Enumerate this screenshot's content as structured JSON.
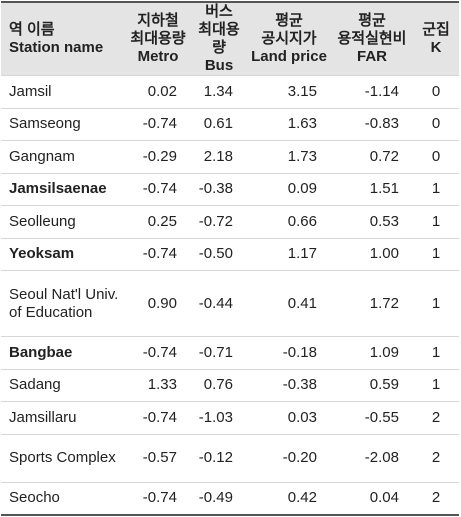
{
  "table": {
    "columns": [
      [
        "역 이름",
        "Station name"
      ],
      [
        "지하철",
        "최대용량",
        "Metro"
      ],
      [
        "버스",
        "최대용량",
        "Bus"
      ],
      [
        "평균",
        "공시지가",
        "Land price"
      ],
      [
        "평균",
        "용적실현비",
        "FAR"
      ],
      [
        "군집",
        "K"
      ]
    ],
    "rows": [
      {
        "name": "Jamsil",
        "bold": false,
        "values": [
          "0.02",
          "1.34",
          "3.15",
          "-1.14",
          "0"
        ]
      },
      {
        "name": "Samseong",
        "bold": false,
        "values": [
          "-0.74",
          "0.61",
          "1.63",
          "-0.83",
          "0"
        ]
      },
      {
        "name": "Gangnam",
        "bold": false,
        "values": [
          "-0.29",
          "2.18",
          "1.73",
          "0.72",
          "0"
        ]
      },
      {
        "name": "Jamsilsaenae",
        "bold": true,
        "values": [
          "-0.74",
          "-0.38",
          "0.09",
          "1.51",
          "1"
        ]
      },
      {
        "name": "Seolleung",
        "bold": false,
        "values": [
          "0.25",
          "-0.72",
          "0.66",
          "0.53",
          "1"
        ]
      },
      {
        "name": "Yeoksam",
        "bold": true,
        "values": [
          "-0.74",
          "-0.50",
          "1.17",
          "1.00",
          "1"
        ]
      },
      {
        "name": "Seoul Nat'l Univ. of Education",
        "bold": false,
        "values": [
          "0.90",
          "-0.44",
          "0.41",
          "1.72",
          "1"
        ]
      },
      {
        "name": "Bangbae",
        "bold": true,
        "values": [
          "-0.74",
          "-0.71",
          "-0.18",
          "1.09",
          "1"
        ]
      },
      {
        "name": "Sadang",
        "bold": false,
        "values": [
          "1.33",
          "0.76",
          "-0.38",
          "0.59",
          "1"
        ]
      },
      {
        "name": "Jamsillaru",
        "bold": false,
        "values": [
          "-0.74",
          "-1.03",
          "0.03",
          "-0.55",
          "2"
        ]
      },
      {
        "name": "Sports Complex",
        "bold": false,
        "values": [
          "-0.57",
          "-0.12",
          "-0.20",
          "-2.08",
          "2"
        ]
      },
      {
        "name": "Seocho",
        "bold": false,
        "values": [
          "-0.74",
          "-0.49",
          "0.42",
          "0.04",
          "2"
        ]
      }
    ]
  }
}
